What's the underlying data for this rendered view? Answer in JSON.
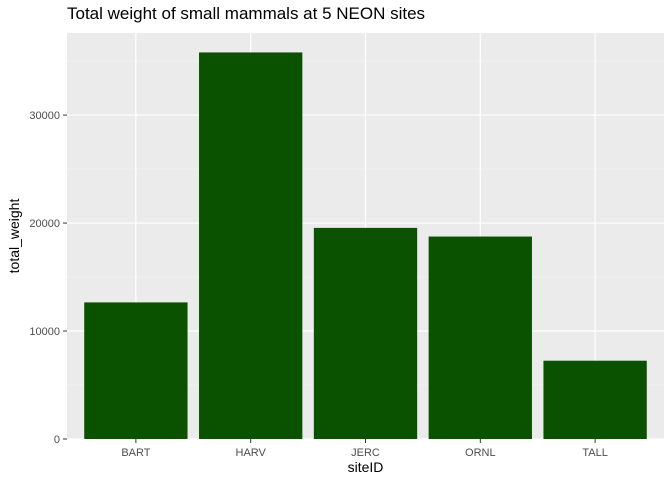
{
  "chart_data": {
    "type": "bar",
    "title": "Total weight of small mammals at 5 NEON sites",
    "xlabel": "siteID",
    "ylabel": "total_weight",
    "categories": [
      "BART",
      "HARV",
      "JERC",
      "ORNL",
      "TALL"
    ],
    "values": [
      12650,
      35800,
      19550,
      18750,
      7250
    ],
    "ylim": [
      0,
      37600
    ],
    "yticks": [
      0,
      10000,
      20000,
      30000
    ],
    "ytick_labels": [
      "0",
      "10000",
      "20000",
      "30000"
    ],
    "grid": true,
    "legend": "none"
  },
  "colors": {
    "bar": "#0a5200",
    "panel": "#ebebeb",
    "grid_major": "#ffffff",
    "grid_minor": "#f5f5f5",
    "tick_text": "#4d4d4d",
    "tick_line": "#333333"
  }
}
